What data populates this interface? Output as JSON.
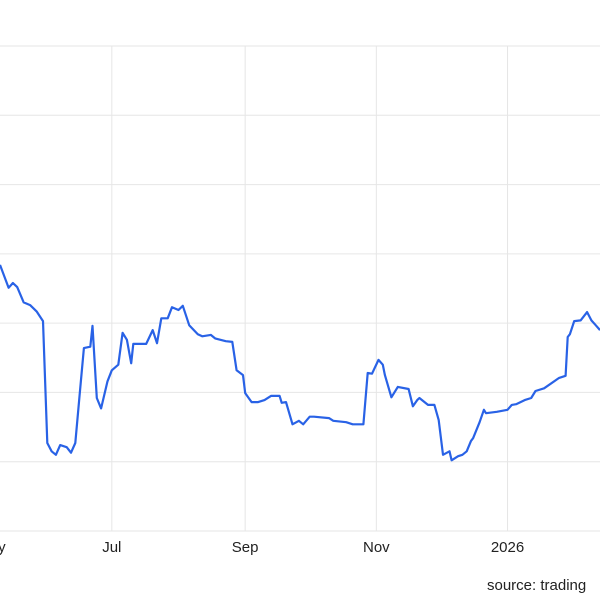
{
  "chart_data": {
    "type": "line",
    "source": "source: trading",
    "x": [
      9,
      13,
      15,
      17,
      20,
      23,
      26,
      29,
      31,
      33,
      35,
      37,
      40,
      42,
      44,
      46,
      48,
      51,
      52,
      54,
      56,
      59,
      61,
      64,
      66,
      68,
      70,
      71,
      77,
      80,
      82,
      84,
      87,
      89,
      92,
      94,
      97,
      101,
      103,
      107,
      109,
      114,
      117,
      119,
      122,
      123,
      126,
      129,
      132,
      135,
      139,
      140,
      142,
      145,
      148,
      150,
      153,
      155,
      162,
      164,
      170,
      173,
      178,
      180,
      182,
      185,
      187,
      188,
      191,
      194,
      199,
      201,
      203,
      204,
      208,
      211,
      213,
      215,
      218,
      219,
      222,
      224,
      226,
      228,
      229,
      232,
      234,
      235,
      240,
      245,
      247,
      249,
      253,
      256,
      258,
      262,
      269,
      272,
      273,
      274,
      276,
      279,
      282,
      284,
      286,
      288
    ],
    "series": [
      {
        "color": "#2962e6",
        "values": [
          38.4,
          35.1,
          35.8,
          35.2,
          33.0,
          32.6,
          31.7,
          30.3,
          12.7,
          11.5,
          11.0,
          12.4,
          12.1,
          11.3,
          12.7,
          19.6,
          26.4,
          26.6,
          29.6,
          19.2,
          17.7,
          21.6,
          23.2,
          24.0,
          28.6,
          27.6,
          24.2,
          27.0,
          27.0,
          29.0,
          27.1,
          30.7,
          30.7,
          32.3,
          31.9,
          32.5,
          29.7,
          28.4,
          28.1,
          28.3,
          27.8,
          27.4,
          27.3,
          23.2,
          22.5,
          19.9,
          18.6,
          18.6,
          18.9,
          19.5,
          19.5,
          18.5,
          18.6,
          15.4,
          15.9,
          15.4,
          16.5,
          16.5,
          16.3,
          15.9,
          15.7,
          15.4,
          15.4,
          22.8,
          22.7,
          24.7,
          24.0,
          22.5,
          19.3,
          20.8,
          20.5,
          18.0,
          18.9,
          19.2,
          18.2,
          18.2,
          16.0,
          11.0,
          11.5,
          10.2,
          10.8,
          11.0,
          11.5,
          13.0,
          13.4,
          15.7,
          17.5,
          17.0,
          17.2,
          17.5,
          18.2,
          18.3,
          18.9,
          19.2,
          20.2,
          20.6,
          22.1,
          22.4,
          28.0,
          28.4,
          30.3,
          30.4,
          31.6,
          30.4,
          29.7,
          29.0
        ]
      }
    ],
    "xlim": [
      9,
      288
    ],
    "xticks": [
      {
        "value": 5,
        "label": "May"
      },
      {
        "value": 61,
        "label": "Jul"
      },
      {
        "value": 123,
        "label": "Sep"
      },
      {
        "value": 184,
        "label": "Nov"
      },
      {
        "value": 245,
        "label": "2026"
      }
    ],
    "ylim": [
      0,
      70
    ],
    "yticks": [
      0,
      10,
      20,
      30,
      40,
      50,
      60,
      70
    ],
    "grid": true
  }
}
